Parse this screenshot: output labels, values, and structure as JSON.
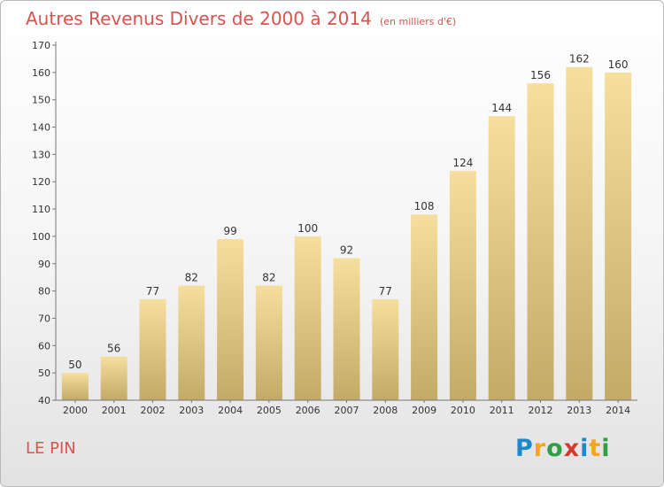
{
  "chart_data": {
    "type": "bar",
    "title": "Autres Revenus Divers de 2000 à 2014",
    "subtitle": "(en milliers d'€)",
    "categories": [
      "2000",
      "2001",
      "2002",
      "2003",
      "2004",
      "2005",
      "2006",
      "2007",
      "2008",
      "2009",
      "2010",
      "2011",
      "2012",
      "2013",
      "2014"
    ],
    "values": [
      50,
      56,
      77,
      82,
      99,
      82,
      100,
      92,
      77,
      108,
      124,
      144,
      156,
      162,
      160
    ],
    "ylim": [
      40,
      170
    ],
    "yticks": [
      40,
      50,
      60,
      70,
      80,
      90,
      100,
      110,
      120,
      130,
      140,
      150,
      160,
      170
    ],
    "grid": false,
    "data_labels": true,
    "colors": {
      "bar_light": "#f5dc9b",
      "bar_dark": "#c2aa67",
      "title": "#d9534f"
    }
  },
  "footer": {
    "place": "LE PIN",
    "logo": "Proxiti"
  }
}
